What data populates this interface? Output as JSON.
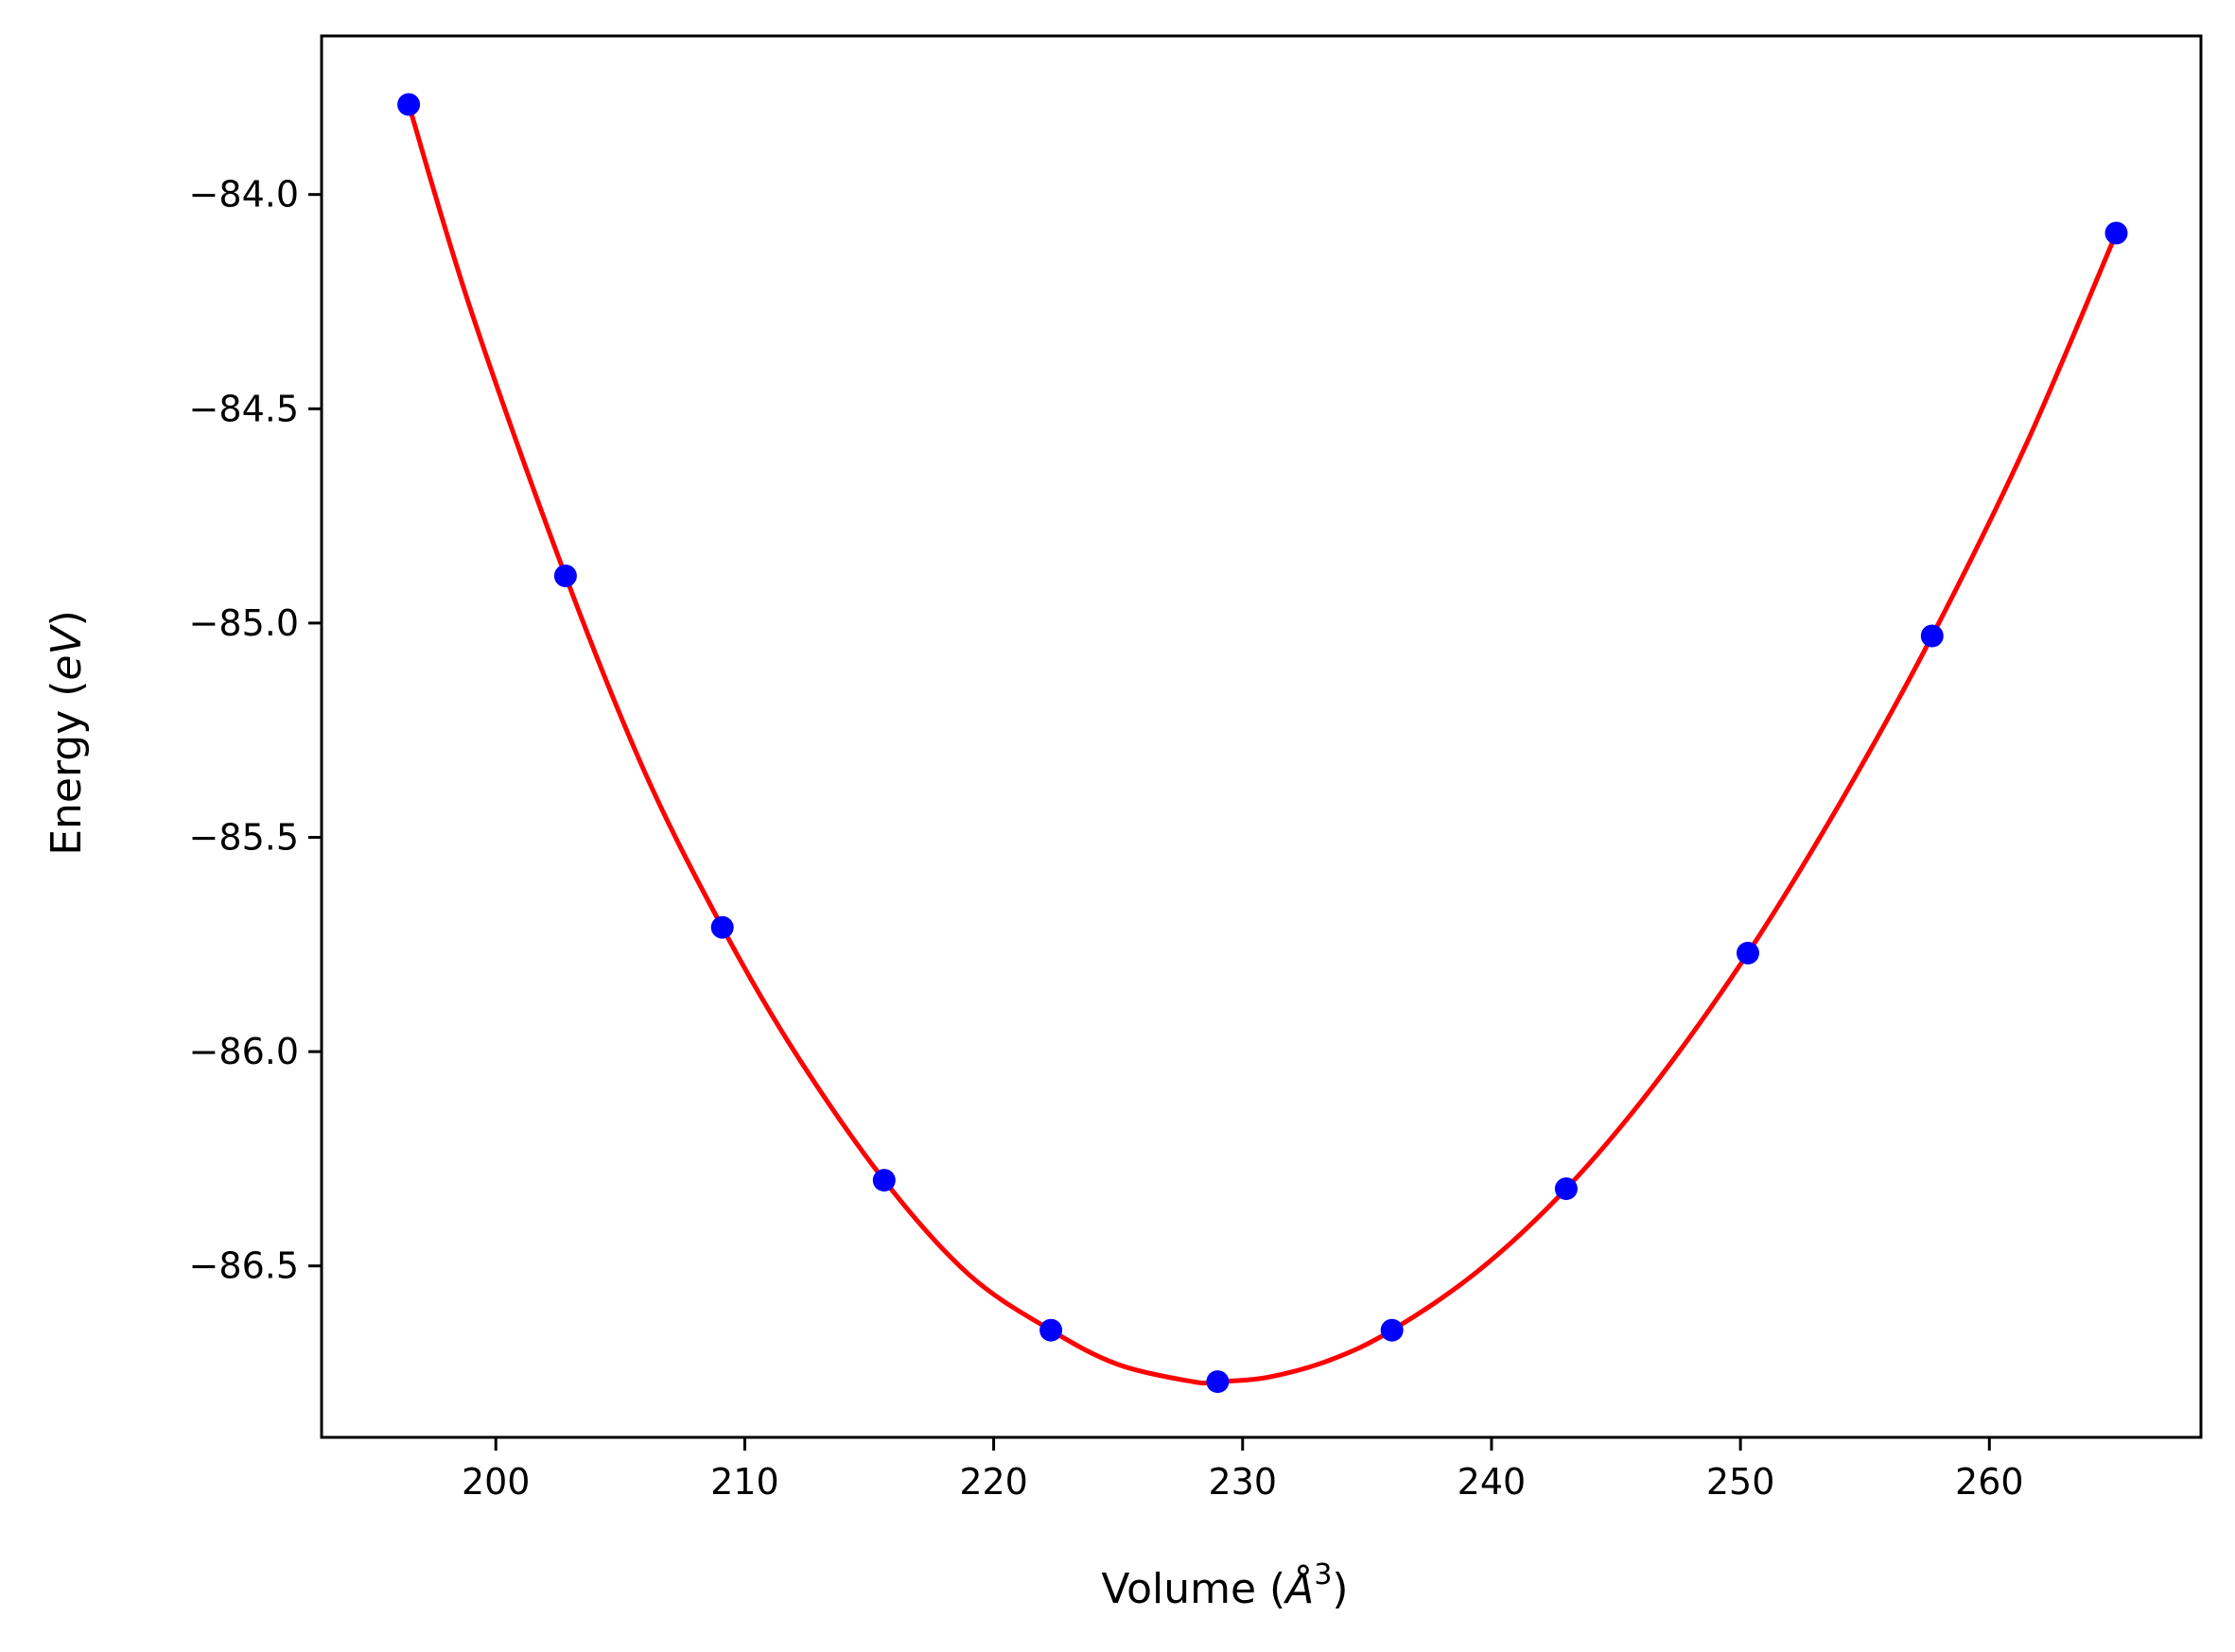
{
  "chart_data": {
    "type": "line",
    "title": "",
    "xlabel": {
      "prefix": "Volume (",
      "symbol": "Å",
      "exponent": "3",
      "suffix": ")"
    },
    "ylabel": {
      "prefix": "Energy (",
      "unit": "eV",
      "suffix": ")"
    },
    "xlim": [
      193,
      268.5
    ],
    "ylim": [
      -86.9,
      -83.63
    ],
    "xticks": [
      200,
      210,
      220,
      230,
      240,
      250,
      260
    ],
    "xtick_labels": [
      "200",
      "210",
      "220",
      "230",
      "240",
      "250",
      "260"
    ],
    "yticks": [
      -84.0,
      -84.5,
      -85.0,
      -85.5,
      -86.0,
      -86.5
    ],
    "ytick_labels": [
      "−84.0",
      "−84.5",
      "−85.0",
      "−85.5",
      "−86.0",
      "−86.5"
    ],
    "grid": false,
    "series": [
      {
        "kind": "scatter",
        "color": "#0000ff",
        "x": [
          196.5,
          202.8,
          209.1,
          215.6,
          222.3,
          229.0,
          236.0,
          243.0,
          250.3,
          257.7,
          265.1
        ],
        "y": [
          -83.79,
          -84.89,
          -85.71,
          -86.3,
          -86.65,
          -86.77,
          -86.65,
          -86.32,
          -85.77,
          -85.03,
          -84.09
        ]
      },
      {
        "kind": "fit",
        "color": "#ff0000",
        "x": [
          196.5,
          199.0,
          202.8,
          206.0,
          209.1,
          212.0,
          215.6,
          219.0,
          222.3,
          225.0,
          228.0,
          229.0,
          231.0,
          233.5,
          236.0,
          239.5,
          243.0,
          246.5,
          250.3,
          254.0,
          257.7,
          261.5,
          265.1
        ],
        "y": [
          -83.79,
          -84.27,
          -84.89,
          -85.35,
          -85.71,
          -86.0,
          -86.3,
          -86.52,
          -86.65,
          -86.73,
          -86.77,
          -86.77,
          -86.76,
          -86.72,
          -86.65,
          -86.51,
          -86.32,
          -86.08,
          -85.77,
          -85.42,
          -85.03,
          -84.58,
          -84.09
        ]
      }
    ]
  }
}
